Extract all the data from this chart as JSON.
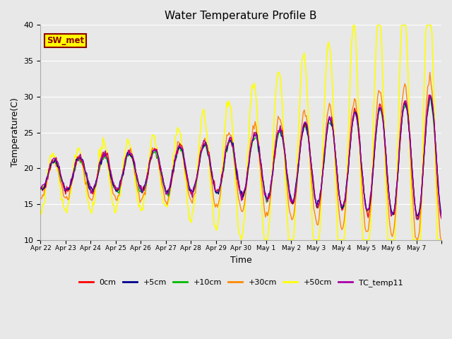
{
  "title": "Water Temperature Profile B",
  "xlabel": "Time",
  "ylabel": "Temperature(C)",
  "ylim": [
    10,
    40
  ],
  "annotation_text": "SW_met",
  "annotation_box_facecolor": "#ffff00",
  "annotation_border_color": "#8b0000",
  "annotation_text_color": "#8b0000",
  "bg_color": "#e8e8e8",
  "grid_color": "#ffffff",
  "series": [
    {
      "label": "0cm",
      "color": "#ff0000",
      "lw": 1.0
    },
    {
      "label": "+5cm",
      "color": "#00008b",
      "lw": 1.0
    },
    {
      "label": "+10cm",
      "color": "#00bb00",
      "lw": 1.0
    },
    {
      "label": "+30cm",
      "color": "#ff8800",
      "lw": 1.0
    },
    {
      "label": "+50cm",
      "color": "#ffff00",
      "lw": 1.2
    },
    {
      "label": "TC_temp11",
      "color": "#aa00aa",
      "lw": 1.0
    }
  ],
  "tick_labels": [
    "Apr 22",
    "Apr 23",
    "Apr 24",
    "Apr 25",
    "Apr 26",
    "Apr 27",
    "Apr 28",
    "Apr 29",
    "Apr 30",
    "May 1",
    "May 2",
    "May 3",
    "May 4",
    "May 5",
    "May 6",
    "May 7"
  ],
  "yticks": [
    10,
    15,
    20,
    25,
    30,
    35,
    40
  ],
  "n_days": 16,
  "pts_per_day": 24
}
